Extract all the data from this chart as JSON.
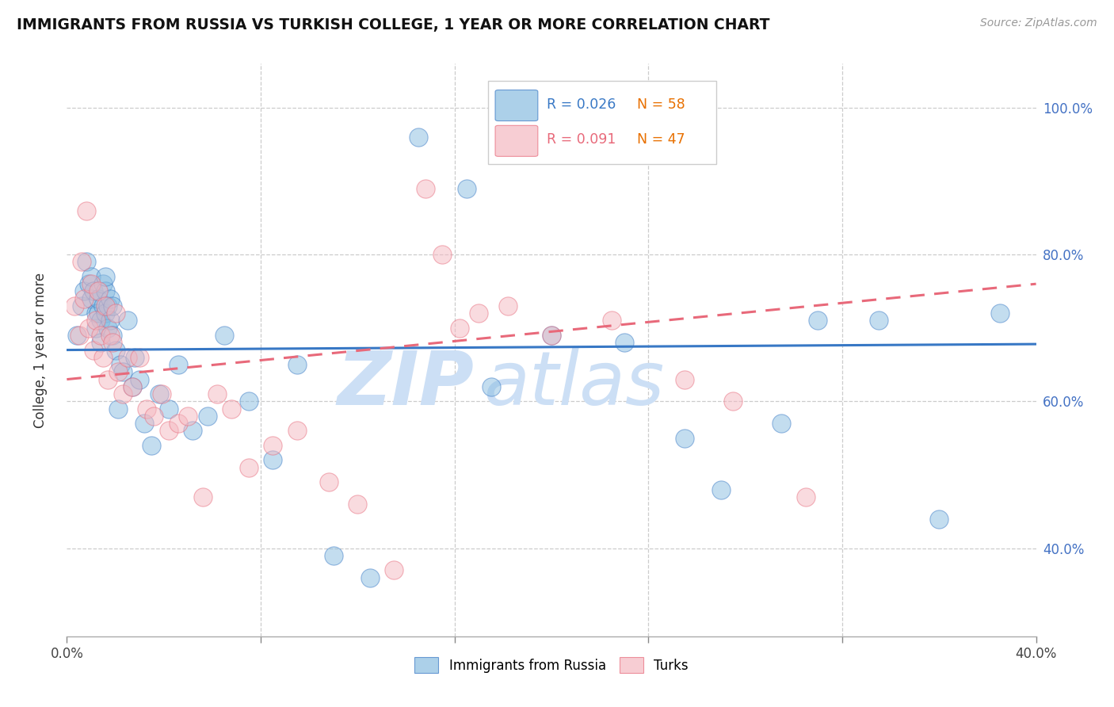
{
  "title": "IMMIGRANTS FROM RUSSIA VS TURKISH COLLEGE, 1 YEAR OR MORE CORRELATION CHART",
  "source": "Source: ZipAtlas.com",
  "ylabel": "College, 1 year or more",
  "xlim": [
    0.0,
    0.4
  ],
  "ylim": [
    0.28,
    1.06
  ],
  "xticks": [
    0.0,
    0.08,
    0.16,
    0.24,
    0.32,
    0.4
  ],
  "xtick_labels": [
    "0.0%",
    "",
    "",
    "",
    "",
    "40.0%"
  ],
  "yticks_right": [
    0.4,
    0.6,
    0.8,
    1.0
  ],
  "ytick_right_labels": [
    "40.0%",
    "60.0%",
    "80.0%",
    "100.0%"
  ],
  "color_blue": "#89bde0",
  "color_pink": "#f4b8c1",
  "color_blue_line": "#3878c5",
  "color_pink_line": "#e8697a",
  "color_blue_dark": "#2060b0",
  "color_orange": "#e87000",
  "watermark_color": "#ccdff5",
  "blue_line_y0": 0.67,
  "blue_line_y1": 0.678,
  "pink_line_y0": 0.63,
  "pink_line_y1": 0.76,
  "blue_scatter_x": [
    0.004,
    0.006,
    0.007,
    0.008,
    0.009,
    0.01,
    0.01,
    0.011,
    0.012,
    0.012,
    0.013,
    0.013,
    0.014,
    0.014,
    0.015,
    0.015,
    0.016,
    0.016,
    0.016,
    0.017,
    0.017,
    0.018,
    0.018,
    0.019,
    0.019,
    0.02,
    0.021,
    0.022,
    0.023,
    0.025,
    0.027,
    0.028,
    0.03,
    0.032,
    0.035,
    0.038,
    0.042,
    0.046,
    0.052,
    0.058,
    0.065,
    0.075,
    0.085,
    0.095,
    0.11,
    0.125,
    0.145,
    0.165,
    0.175,
    0.2,
    0.23,
    0.255,
    0.27,
    0.295,
    0.31,
    0.335,
    0.36,
    0.385
  ],
  "blue_scatter_y": [
    0.69,
    0.73,
    0.75,
    0.79,
    0.76,
    0.77,
    0.74,
    0.75,
    0.72,
    0.7,
    0.72,
    0.74,
    0.71,
    0.68,
    0.73,
    0.76,
    0.72,
    0.75,
    0.77,
    0.7,
    0.73,
    0.71,
    0.74,
    0.69,
    0.73,
    0.67,
    0.59,
    0.65,
    0.64,
    0.71,
    0.62,
    0.66,
    0.63,
    0.57,
    0.54,
    0.61,
    0.59,
    0.65,
    0.56,
    0.58,
    0.69,
    0.6,
    0.52,
    0.65,
    0.39,
    0.36,
    0.96,
    0.89,
    0.62,
    0.69,
    0.68,
    0.55,
    0.48,
    0.57,
    0.71,
    0.71,
    0.44,
    0.72
  ],
  "pink_scatter_x": [
    0.003,
    0.005,
    0.006,
    0.007,
    0.008,
    0.009,
    0.01,
    0.011,
    0.012,
    0.013,
    0.014,
    0.015,
    0.016,
    0.017,
    0.018,
    0.019,
    0.02,
    0.021,
    0.023,
    0.025,
    0.027,
    0.03,
    0.033,
    0.036,
    0.039,
    0.042,
    0.046,
    0.05,
    0.056,
    0.062,
    0.068,
    0.075,
    0.085,
    0.095,
    0.108,
    0.12,
    0.135,
    0.148,
    0.155,
    0.162,
    0.17,
    0.182,
    0.2,
    0.225,
    0.255,
    0.275,
    0.305
  ],
  "pink_scatter_y": [
    0.73,
    0.69,
    0.79,
    0.74,
    0.86,
    0.7,
    0.76,
    0.67,
    0.71,
    0.75,
    0.69,
    0.66,
    0.73,
    0.63,
    0.69,
    0.68,
    0.72,
    0.64,
    0.61,
    0.66,
    0.62,
    0.66,
    0.59,
    0.58,
    0.61,
    0.56,
    0.57,
    0.58,
    0.47,
    0.61,
    0.59,
    0.51,
    0.54,
    0.56,
    0.49,
    0.46,
    0.37,
    0.89,
    0.8,
    0.7,
    0.72,
    0.73,
    0.69,
    0.71,
    0.63,
    0.6,
    0.47
  ]
}
